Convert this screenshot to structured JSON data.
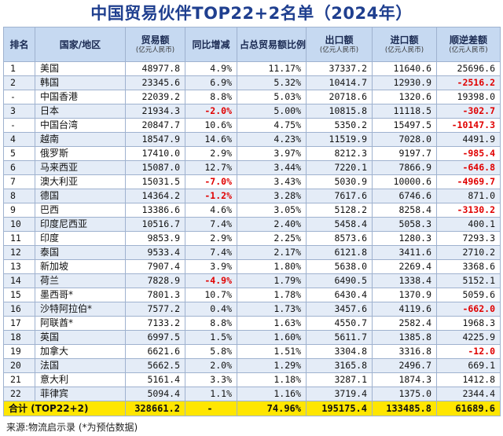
{
  "title": "中国贸易伙伴TOP22+2名单（2024年）",
  "headers": {
    "rank": "排名",
    "country": "国家/地区",
    "trade": "贸易额",
    "trade_unit": "(亿元人民币)",
    "yoy": "同比增减",
    "share": "占总贸易额比例",
    "export": "出口额",
    "export_unit": "(亿元人民币)",
    "import": "进口额",
    "import_unit": "(亿元人民币)",
    "balance": "顺逆差额",
    "balance_unit": "(亿元人民币)"
  },
  "rows": [
    {
      "rank": "1",
      "name": "美国",
      "trade": "48977.8",
      "yoy": "4.9%",
      "share": "11.17%",
      "export": "37337.2",
      "import": "11640.6",
      "balance": "25696.6",
      "yoy_neg": false,
      "bal_neg": false
    },
    {
      "rank": "2",
      "name": "韩国",
      "trade": "23345.6",
      "yoy": "6.9%",
      "share": "5.32%",
      "export": "10414.7",
      "import": "12930.9",
      "balance": "-2516.2",
      "yoy_neg": false,
      "bal_neg": true
    },
    {
      "rank": "-",
      "name": "中国香港",
      "trade": "22039.2",
      "yoy": "8.8%",
      "share": "5.03%",
      "export": "20718.6",
      "import": "1320.6",
      "balance": "19398.0",
      "yoy_neg": false,
      "bal_neg": false
    },
    {
      "rank": "3",
      "name": "日本",
      "trade": "21934.3",
      "yoy": "-2.0%",
      "share": "5.00%",
      "export": "10815.8",
      "import": "11118.5",
      "balance": "-302.7",
      "yoy_neg": true,
      "bal_neg": true
    },
    {
      "rank": "-",
      "name": "中国台湾",
      "trade": "20847.7",
      "yoy": "10.6%",
      "share": "4.75%",
      "export": "5350.2",
      "import": "15497.5",
      "balance": "-10147.3",
      "yoy_neg": false,
      "bal_neg": true
    },
    {
      "rank": "4",
      "name": "越南",
      "trade": "18547.9",
      "yoy": "14.6%",
      "share": "4.23%",
      "export": "11519.9",
      "import": "7028.0",
      "balance": "4491.9",
      "yoy_neg": false,
      "bal_neg": false
    },
    {
      "rank": "5",
      "name": "俄罗斯",
      "trade": "17410.0",
      "yoy": "2.9%",
      "share": "3.97%",
      "export": "8212.3",
      "import": "9197.7",
      "balance": "-985.4",
      "yoy_neg": false,
      "bal_neg": true
    },
    {
      "rank": "6",
      "name": "马来西亚",
      "trade": "15087.0",
      "yoy": "12.7%",
      "share": "3.44%",
      "export": "7220.1",
      "import": "7866.9",
      "balance": "-646.8",
      "yoy_neg": false,
      "bal_neg": true
    },
    {
      "rank": "7",
      "name": "澳大利亚",
      "trade": "15031.5",
      "yoy": "-7.0%",
      "share": "3.43%",
      "export": "5030.9",
      "import": "10000.6",
      "balance": "-4969.7",
      "yoy_neg": true,
      "bal_neg": true
    },
    {
      "rank": "8",
      "name": "德国",
      "trade": "14364.2",
      "yoy": "-1.2%",
      "share": "3.28%",
      "export": "7617.6",
      "import": "6746.6",
      "balance": "871.0",
      "yoy_neg": true,
      "bal_neg": false
    },
    {
      "rank": "9",
      "name": "巴西",
      "trade": "13386.6",
      "yoy": "4.6%",
      "share": "3.05%",
      "export": "5128.2",
      "import": "8258.4",
      "balance": "-3130.2",
      "yoy_neg": false,
      "bal_neg": true
    },
    {
      "rank": "10",
      "name": "印度尼西亚",
      "trade": "10516.7",
      "yoy": "7.4%",
      "share": "2.40%",
      "export": "5458.4",
      "import": "5058.3",
      "balance": "400.1",
      "yoy_neg": false,
      "bal_neg": false
    },
    {
      "rank": "11",
      "name": "印度",
      "trade": "9853.9",
      "yoy": "2.9%",
      "share": "2.25%",
      "export": "8573.6",
      "import": "1280.3",
      "balance": "7293.3",
      "yoy_neg": false,
      "bal_neg": false
    },
    {
      "rank": "12",
      "name": "泰国",
      "trade": "9533.4",
      "yoy": "7.4%",
      "share": "2.17%",
      "export": "6121.8",
      "import": "3411.6",
      "balance": "2710.2",
      "yoy_neg": false,
      "bal_neg": false
    },
    {
      "rank": "13",
      "name": "新加坡",
      "trade": "7907.4",
      "yoy": "3.9%",
      "share": "1.80%",
      "export": "5638.0",
      "import": "2269.4",
      "balance": "3368.6",
      "yoy_neg": false,
      "bal_neg": false
    },
    {
      "rank": "14",
      "name": "荷兰",
      "trade": "7828.9",
      "yoy": "-4.9%",
      "share": "1.79%",
      "export": "6490.5",
      "import": "1338.4",
      "balance": "5152.1",
      "yoy_neg": true,
      "bal_neg": false
    },
    {
      "rank": "15",
      "name": "墨西哥*",
      "trade": "7801.3",
      "yoy": "10.7%",
      "share": "1.78%",
      "export": "6430.4",
      "import": "1370.9",
      "balance": "5059.6",
      "yoy_neg": false,
      "bal_neg": false
    },
    {
      "rank": "16",
      "name": "沙特阿拉伯*",
      "trade": "7577.2",
      "yoy": "0.4%",
      "share": "1.73%",
      "export": "3457.6",
      "import": "4119.6",
      "balance": "-662.0",
      "yoy_neg": false,
      "bal_neg": true
    },
    {
      "rank": "17",
      "name": "阿联酋*",
      "trade": "7133.2",
      "yoy": "8.8%",
      "share": "1.63%",
      "export": "4550.7",
      "import": "2582.4",
      "balance": "1968.3",
      "yoy_neg": false,
      "bal_neg": false
    },
    {
      "rank": "18",
      "name": "英国",
      "trade": "6997.5",
      "yoy": "1.5%",
      "share": "1.60%",
      "export": "5611.7",
      "import": "1385.8",
      "balance": "4225.9",
      "yoy_neg": false,
      "bal_neg": false
    },
    {
      "rank": "19",
      "name": "加拿大",
      "trade": "6621.6",
      "yoy": "5.8%",
      "share": "1.51%",
      "export": "3304.8",
      "import": "3316.8",
      "balance": "-12.0",
      "yoy_neg": false,
      "bal_neg": true
    },
    {
      "rank": "20",
      "name": "法国",
      "trade": "5662.5",
      "yoy": "2.0%",
      "share": "1.29%",
      "export": "3165.8",
      "import": "2496.7",
      "balance": "669.1",
      "yoy_neg": false,
      "bal_neg": false
    },
    {
      "rank": "21",
      "name": "意大利",
      "trade": "5161.4",
      "yoy": "3.3%",
      "share": "1.18%",
      "export": "3287.1",
      "import": "1874.3",
      "balance": "1412.8",
      "yoy_neg": false,
      "bal_neg": false
    },
    {
      "rank": "22",
      "name": "菲律宾",
      "trade": "5094.4",
      "yoy": "1.1%",
      "share": "1.16%",
      "export": "3719.4",
      "import": "1375.0",
      "balance": "2344.4",
      "yoy_neg": false,
      "bal_neg": false
    }
  ],
  "total": {
    "label": "合计 (TOP22+2)",
    "trade": "328661.2",
    "yoy": "-",
    "share": "74.96%",
    "export": "195175.4",
    "import": "133485.8",
    "balance": "61689.6"
  },
  "source": "来源:物流启示录 (*为预估数据)",
  "colors": {
    "title": "#1f3f8f",
    "header_bg": "#c6d9f1",
    "stripe": "#e4ecf7",
    "negative": "#e00000",
    "total_bg": "#ffe600"
  }
}
